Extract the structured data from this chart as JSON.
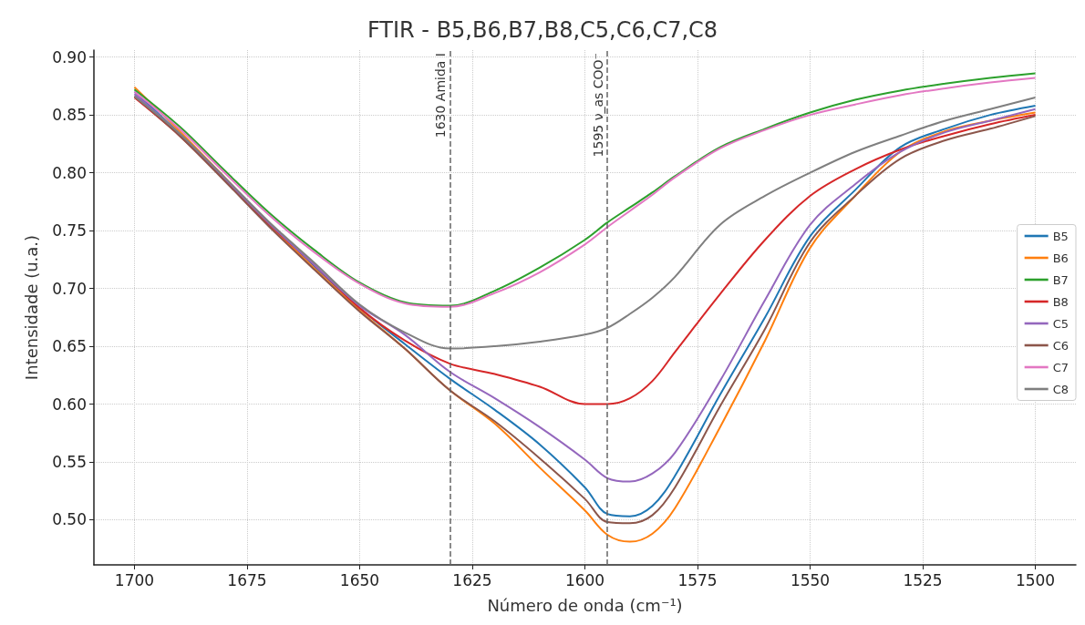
{
  "chart_data": {
    "type": "line",
    "title": "FTIR - B5,B6,B7,B8,C5,C6,C7,C8",
    "xlabel": "Número de onda (cm⁻¹)",
    "ylabel": "Intensidade (u.a.)",
    "x": [
      1700,
      1690,
      1680,
      1670,
      1660,
      1650,
      1640,
      1630,
      1620,
      1610,
      1600,
      1595,
      1590,
      1585,
      1580,
      1570,
      1560,
      1550,
      1540,
      1530,
      1520,
      1510,
      1500
    ],
    "series": [
      {
        "name": "B5",
        "color": "#1f77b4",
        "values": [
          0.87,
          0.834,
          0.795,
          0.756,
          0.719,
          0.683,
          0.652,
          0.622,
          0.595,
          0.565,
          0.528,
          0.505,
          0.503,
          0.512,
          0.538,
          0.608,
          0.675,
          0.745,
          0.785,
          0.822,
          0.838,
          0.85,
          0.858
        ]
      },
      {
        "name": "B6",
        "color": "#ff7f0e",
        "values": [
          0.874,
          0.836,
          0.796,
          0.755,
          0.717,
          0.681,
          0.648,
          0.612,
          0.583,
          0.545,
          0.508,
          0.487,
          0.481,
          0.488,
          0.51,
          0.58,
          0.655,
          0.735,
          0.78,
          0.818,
          0.836,
          0.845,
          0.852
        ]
      },
      {
        "name": "B7",
        "color": "#2ca02c",
        "values": [
          0.872,
          0.84,
          0.802,
          0.765,
          0.733,
          0.705,
          0.688,
          0.685,
          0.698,
          0.718,
          0.742,
          0.757,
          0.77,
          0.783,
          0.797,
          0.822,
          0.838,
          0.852,
          0.863,
          0.871,
          0.877,
          0.882,
          0.886
        ]
      },
      {
        "name": "B8",
        "color": "#d62728",
        "values": [
          0.865,
          0.832,
          0.794,
          0.755,
          0.72,
          0.683,
          0.655,
          0.635,
          0.626,
          0.615,
          0.6,
          0.6,
          0.605,
          0.62,
          0.645,
          0.695,
          0.742,
          0.78,
          0.803,
          0.82,
          0.832,
          0.842,
          0.85
        ]
      },
      {
        "name": "C5",
        "color": "#9467bd",
        "values": [
          0.868,
          0.834,
          0.795,
          0.756,
          0.72,
          0.685,
          0.66,
          0.628,
          0.605,
          0.58,
          0.552,
          0.536,
          0.533,
          0.54,
          0.558,
          0.62,
          0.69,
          0.755,
          0.79,
          0.818,
          0.835,
          0.845,
          0.855
        ]
      },
      {
        "name": "C6",
        "color": "#8c564b",
        "values": [
          0.866,
          0.832,
          0.793,
          0.753,
          0.716,
          0.68,
          0.648,
          0.612,
          0.585,
          0.553,
          0.518,
          0.498,
          0.497,
          0.504,
          0.528,
          0.598,
          0.665,
          0.74,
          0.78,
          0.812,
          0.828,
          0.838,
          0.849
        ]
      },
      {
        "name": "C7",
        "color": "#e377c2",
        "values": [
          0.87,
          0.838,
          0.8,
          0.763,
          0.731,
          0.704,
          0.687,
          0.684,
          0.696,
          0.714,
          0.738,
          0.753,
          0.767,
          0.781,
          0.796,
          0.821,
          0.837,
          0.85,
          0.859,
          0.867,
          0.873,
          0.878,
          0.882
        ]
      },
      {
        "name": "C8",
        "color": "#7f7f7f",
        "values": [
          0.866,
          0.834,
          0.796,
          0.757,
          0.722,
          0.686,
          0.662,
          0.648,
          0.65,
          0.654,
          0.66,
          0.666,
          0.678,
          0.692,
          0.71,
          0.755,
          0.78,
          0.8,
          0.818,
          0.832,
          0.845,
          0.855,
          0.865
        ]
      }
    ],
    "xlim": [
      1709,
      1491
    ],
    "xticks": [
      1700,
      1675,
      1650,
      1625,
      1600,
      1575,
      1550,
      1525,
      1500
    ],
    "ylim": [
      0.461,
      0.906
    ],
    "yticks": [
      {
        "value": 0.5,
        "label": "0.50"
      },
      0.55,
      {
        "value": 0.6,
        "label": "0.60"
      },
      0.65,
      {
        "value": 0.7,
        "label": "0.70"
      },
      0.75,
      {
        "value": 0.8,
        "label": "0.80"
      },
      0.85,
      {
        "value": 0.9,
        "label": "0.90"
      }
    ],
    "ref_lines": [
      {
        "axis": "x",
        "value": 1630,
        "label": "1630 Amida I",
        "color": "#666666",
        "line_style": "dashed"
      },
      {
        "axis": "x",
        "value": 1595,
        "label": "1595 ν_as COO⁻",
        "color": "#666666",
        "line_style": "dashed"
      }
    ],
    "grid": true,
    "legend": "right",
    "line_style": "solid",
    "marker": "none"
  }
}
